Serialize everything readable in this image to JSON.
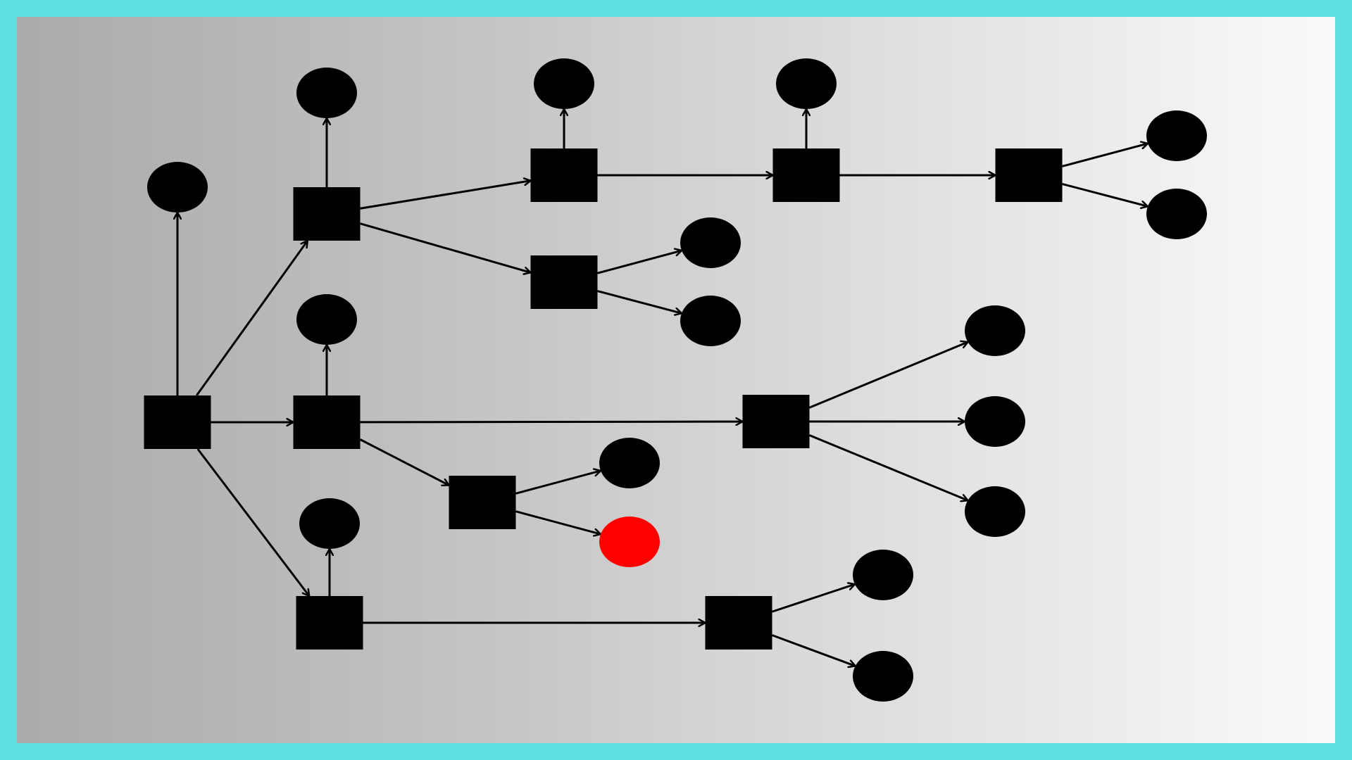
{
  "colors": {
    "frame": "#5ee0e3",
    "node_fill": "#000000",
    "highlight_fill": "#ff0000",
    "edge": "#000000",
    "background_start": "#aaaaaa",
    "background_end": "#fafafa"
  },
  "diagram": {
    "nodes": [
      {
        "id": "r",
        "shape": "rect"
      },
      {
        "id": "a",
        "shape": "rect"
      },
      {
        "id": "b",
        "shape": "rect"
      },
      {
        "id": "c",
        "shape": "rect"
      },
      {
        "id": "a1",
        "shape": "rect"
      },
      {
        "id": "a2",
        "shape": "rect"
      },
      {
        "id": "a11",
        "shape": "rect"
      },
      {
        "id": "a111",
        "shape": "rect"
      },
      {
        "id": "b1",
        "shape": "rect"
      },
      {
        "id": "b2",
        "shape": "rect"
      },
      {
        "id": "c1",
        "shape": "rect"
      },
      {
        "id": "e_r",
        "shape": "ellipse"
      },
      {
        "id": "e_a",
        "shape": "ellipse"
      },
      {
        "id": "e_b",
        "shape": "ellipse"
      },
      {
        "id": "e_c",
        "shape": "ellipse"
      },
      {
        "id": "e_a1",
        "shape": "ellipse"
      },
      {
        "id": "e_a11",
        "shape": "ellipse"
      },
      {
        "id": "e_a111_1",
        "shape": "ellipse"
      },
      {
        "id": "e_a111_2",
        "shape": "ellipse"
      },
      {
        "id": "e_a2_1",
        "shape": "ellipse"
      },
      {
        "id": "e_a2_2",
        "shape": "ellipse"
      },
      {
        "id": "e_b1_1",
        "shape": "ellipse"
      },
      {
        "id": "e_b1_2",
        "shape": "ellipse"
      },
      {
        "id": "e_b1_3",
        "shape": "ellipse"
      },
      {
        "id": "e_b2_1",
        "shape": "ellipse"
      },
      {
        "id": "e_b2_2",
        "shape": "ellipse",
        "highlight": true
      },
      {
        "id": "e_c1_1",
        "shape": "ellipse"
      },
      {
        "id": "e_c1_2",
        "shape": "ellipse"
      }
    ],
    "edges": [
      {
        "from": "r",
        "to": "e_r"
      },
      {
        "from": "r",
        "to": "a"
      },
      {
        "from": "r",
        "to": "b"
      },
      {
        "from": "r",
        "to": "c"
      },
      {
        "from": "a",
        "to": "e_a"
      },
      {
        "from": "a",
        "to": "a1"
      },
      {
        "from": "a",
        "to": "a2"
      },
      {
        "from": "a1",
        "to": "e_a1"
      },
      {
        "from": "a1",
        "to": "a11"
      },
      {
        "from": "a11",
        "to": "e_a11"
      },
      {
        "from": "a11",
        "to": "a111"
      },
      {
        "from": "a111",
        "to": "e_a111_1"
      },
      {
        "from": "a111",
        "to": "e_a111_2"
      },
      {
        "from": "a2",
        "to": "e_a2_1"
      },
      {
        "from": "a2",
        "to": "e_a2_2"
      },
      {
        "from": "b",
        "to": "e_b"
      },
      {
        "from": "b",
        "to": "b1"
      },
      {
        "from": "b",
        "to": "b2"
      },
      {
        "from": "b1",
        "to": "e_b1_1"
      },
      {
        "from": "b1",
        "to": "e_b1_2"
      },
      {
        "from": "b1",
        "to": "e_b1_3"
      },
      {
        "from": "b2",
        "to": "e_b2_1"
      },
      {
        "from": "b2",
        "to": "e_b2_2"
      },
      {
        "from": "c",
        "to": "e_c"
      },
      {
        "from": "c",
        "to": "c1"
      },
      {
        "from": "c1",
        "to": "e_c1_1"
      },
      {
        "from": "c1",
        "to": "e_c1_2"
      }
    ]
  }
}
